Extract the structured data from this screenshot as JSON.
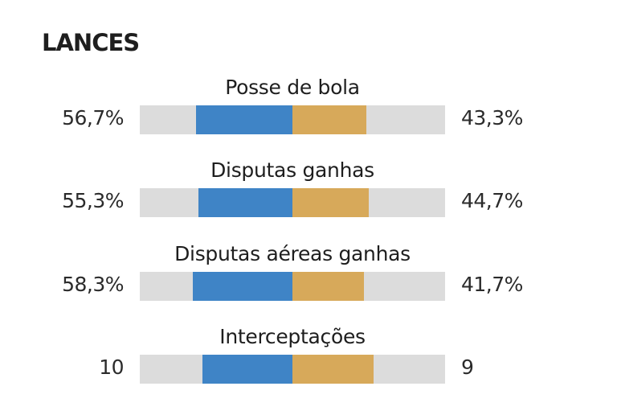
{
  "section_title": "LANCES",
  "colors": {
    "left_team": "#3f84c6",
    "right_team": "#d7a95a",
    "track": "#dcdcdc"
  },
  "chart_data": {
    "type": "bar",
    "title": "LANCES",
    "categories": [
      "Posse de bola",
      "Disputas ganhas",
      "Disputas aéreas ganhas",
      "Interceptações"
    ],
    "series": [
      {
        "values": [
          56.7,
          55.3,
          58.3,
          10
        ]
      },
      {
        "values": [
          43.3,
          44.7,
          41.7,
          9
        ]
      }
    ],
    "labels_left": [
      "56,7%",
      "55,3%",
      "58,3%",
      "10"
    ],
    "labels_right": [
      "43,3%",
      "44,7%",
      "41,7%",
      "9"
    ]
  }
}
